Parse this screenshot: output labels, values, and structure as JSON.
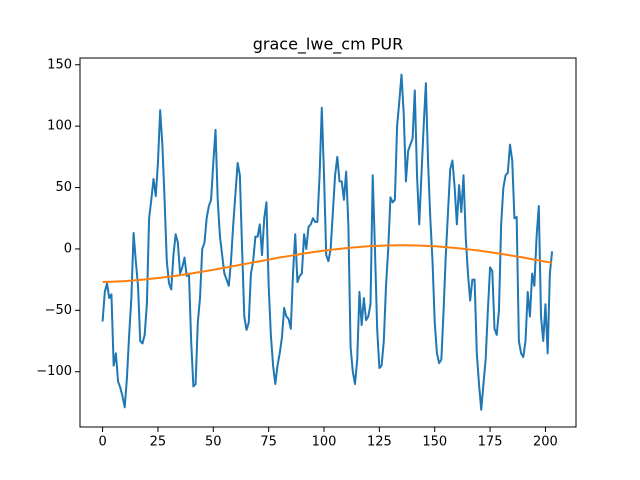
{
  "chart_data": {
    "type": "line",
    "title": "grace_lwe_cm PUR",
    "x": [
      0,
      1,
      2,
      3,
      4,
      5,
      6,
      7,
      8,
      9,
      10,
      11,
      12,
      13,
      14,
      15,
      16,
      17,
      18,
      19,
      20,
      21,
      22,
      23,
      24,
      25,
      26,
      27,
      28,
      29,
      30,
      31,
      32,
      33,
      34,
      35,
      36,
      37,
      38,
      39,
      40,
      41,
      42,
      43,
      44,
      45,
      46,
      47,
      48,
      49,
      50,
      51,
      52,
      53,
      54,
      55,
      56,
      57,
      58,
      59,
      60,
      61,
      62,
      63,
      64,
      65,
      66,
      67,
      68,
      69,
      70,
      71,
      72,
      73,
      74,
      75,
      76,
      77,
      78,
      79,
      80,
      81,
      82,
      83,
      84,
      85,
      86,
      87,
      88,
      89,
      90,
      91,
      92,
      93,
      94,
      95,
      96,
      97,
      98,
      99,
      100,
      101,
      102,
      103,
      104,
      105,
      106,
      107,
      108,
      109,
      110,
      111,
      112,
      113,
      114,
      115,
      116,
      117,
      118,
      119,
      120,
      121,
      122,
      123,
      124,
      125,
      126,
      127,
      128,
      129,
      130,
      131,
      132,
      133,
      134,
      135,
      136,
      137,
      138,
      139,
      140,
      141,
      142,
      143,
      144,
      145,
      146,
      147,
      148,
      149,
      150,
      151,
      152,
      153,
      154,
      155,
      156,
      157,
      158,
      159,
      160,
      161,
      162,
      163,
      164,
      165,
      166,
      167,
      168,
      169,
      170,
      171,
      172,
      173,
      174,
      175,
      176,
      177,
      178,
      179,
      180,
      181,
      182,
      183,
      184,
      185,
      186,
      187,
      188,
      189,
      190,
      191,
      192,
      193,
      194,
      195,
      196,
      197,
      198,
      199,
      200,
      201,
      202,
      203
    ],
    "series": [
      {
        "color": "#1f77b4",
        "values": [
          -59,
          -35,
          -28,
          -40,
          -37,
          -95,
          -85,
          -108,
          -113,
          -120,
          -129,
          -105,
          -70,
          -40,
          13,
          -10,
          -30,
          -75,
          -77,
          -70,
          -45,
          25,
          40,
          57,
          43,
          70,
          113,
          85,
          40,
          -10,
          -28,
          -33,
          -5,
          12,
          5,
          -20,
          -15,
          -7,
          -22,
          -20,
          -75,
          -112,
          -110,
          -60,
          -40,
          0,
          5,
          25,
          35,
          40,
          70,
          97,
          40,
          10,
          -5,
          -20,
          -25,
          -30,
          -10,
          20,
          45,
          70,
          60,
          0,
          -55,
          -66,
          -60,
          -20,
          -10,
          10,
          10,
          20,
          -5,
          25,
          38,
          -30,
          -70,
          -95,
          -110,
          -95,
          -85,
          -72,
          -48,
          -55,
          -57,
          -65,
          -20,
          12,
          -27,
          -22,
          -20,
          12,
          0,
          18,
          20,
          25,
          22,
          22,
          60,
          115,
          60,
          -5,
          -10,
          0,
          30,
          60,
          75,
          55,
          55,
          40,
          63,
          20,
          -80,
          -100,
          -110,
          -90,
          -35,
          -62,
          -40,
          -58,
          -55,
          -45,
          60,
          0,
          -65,
          -97,
          -95,
          -75,
          -30,
          0,
          42,
          38,
          40,
          100,
          120,
          142,
          110,
          55,
          80,
          85,
          90,
          129,
          60,
          20,
          60,
          100,
          135,
          70,
          25,
          -10,
          -60,
          -85,
          -93,
          -90,
          -50,
          -5,
          30,
          65,
          72,
          50,
          20,
          52,
          30,
          60,
          10,
          -20,
          -42,
          -25,
          -25,
          -85,
          -110,
          -131,
          -110,
          -90,
          -50,
          -15,
          -18,
          -65,
          -70,
          -50,
          20,
          50,
          60,
          62,
          85,
          72,
          25,
          26,
          -75,
          -85,
          -88,
          -75,
          -35,
          -55,
          -20,
          -30,
          10,
          35,
          -55,
          -75,
          -45,
          -85,
          -20,
          -2
        ]
      },
      {
        "color": "#ff7f0e",
        "values": [
          -26.9,
          -26.8,
          -26.8,
          -26.7,
          -26.7,
          -26.6,
          -26.5,
          -26.4,
          -26.4,
          -26.3,
          -26.2,
          -26.1,
          -25.9,
          -25.8,
          -25.6,
          -25.5,
          -25.3,
          -25.2,
          -25.0,
          -24.9,
          -24.7,
          -24.5,
          -24.3,
          -24.1,
          -23.9,
          -23.7,
          -23.5,
          -23.3,
          -23.0,
          -22.8,
          -22.6,
          -22.4,
          -22.1,
          -21.9,
          -21.6,
          -21.4,
          -21.1,
          -20.8,
          -20.6,
          -20.3,
          -20.0,
          -19.7,
          -19.4,
          -19.1,
          -18.8,
          -18.5,
          -18.2,
          -17.9,
          -17.6,
          -17.3,
          -17.0,
          -16.7,
          -16.3,
          -16.0,
          -15.6,
          -15.3,
          -15.0,
          -14.7,
          -14.3,
          -14.0,
          -13.7,
          -13.4,
          -13.0,
          -12.7,
          -12.3,
          -12.0,
          -11.7,
          -11.3,
          -11.0,
          -10.6,
          -10.3,
          -10.0,
          -9.7,
          -9.3,
          -9.0,
          -8.7,
          -8.4,
          -8.0,
          -7.7,
          -7.3,
          -7.0,
          -6.7,
          -6.4,
          -6.1,
          -5.8,
          -5.5,
          -5.2,
          -4.9,
          -4.6,
          -4.3,
          -4.0,
          -3.7,
          -3.4,
          -3.2,
          -2.9,
          -2.6,
          -2.4,
          -2.1,
          -1.9,
          -1.6,
          -1.4,
          -1.2,
          -1.0,
          -0.7,
          -0.5,
          -0.3,
          -0.1,
          0.1,
          0.3,
          0.5,
          0.7,
          0.9,
          1.0,
          1.2,
          1.3,
          1.5,
          1.6,
          1.8,
          1.9,
          2.1,
          2.2,
          2.3,
          2.4,
          2.4,
          2.5,
          2.6,
          2.7,
          2.7,
          2.8,
          2.8,
          2.9,
          2.9,
          2.9,
          3.0,
          3.0,
          3.0,
          3.0,
          3.0,
          2.9,
          2.9,
          2.9,
          2.8,
          2.8,
          2.7,
          2.7,
          2.6,
          2.5,
          2.4,
          2.4,
          2.3,
          2.2,
          2.1,
          1.9,
          1.8,
          1.6,
          1.5,
          1.3,
          1.2,
          1.0,
          0.9,
          0.7,
          0.5,
          0.3,
          0.1,
          -0.1,
          -0.3,
          -0.5,
          -0.7,
          -1.0,
          -1.2,
          -1.4,
          -1.6,
          -1.9,
          -2.1,
          -2.4,
          -2.6,
          -2.9,
          -3.2,
          -3.4,
          -3.7,
          -4.0,
          -4.3,
          -4.6,
          -4.9,
          -5.2,
          -5.5,
          -5.8,
          -6.1,
          -6.4,
          -6.7,
          -7.0,
          -7.3,
          -7.7,
          -8.0,
          -8.4,
          -8.7,
          -9.0,
          -9.3,
          -9.7,
          -10.0,
          -10.3,
          -10.6,
          -11.0,
          -11.3
        ]
      }
    ],
    "xlim": [
      -10.2,
      213.8
    ],
    "xticks": [
      0,
      25,
      50,
      75,
      100,
      125,
      150,
      175,
      200
    ],
    "ylim": [
      -145,
      155.5
    ],
    "yticks": [
      {
        "value": -100,
        "label": "−100"
      },
      {
        "value": -50,
        "label": "−50"
      },
      0,
      50,
      100,
      150
    ],
    "grid": false
  }
}
